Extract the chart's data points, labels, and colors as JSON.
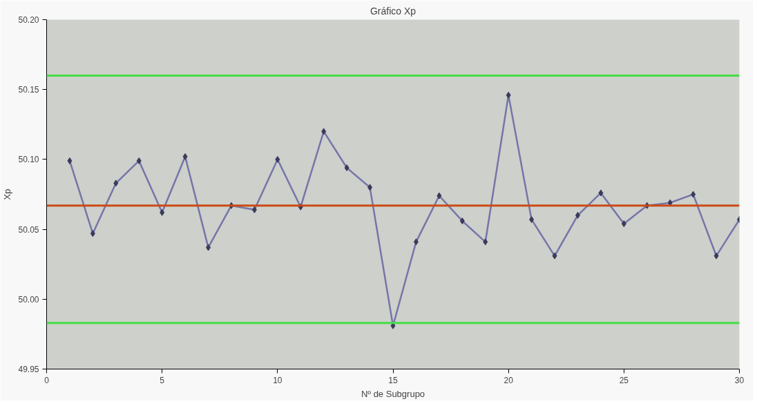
{
  "chart_data": {
    "type": "line",
    "title": "Gráfico Xp",
    "xlabel": "Nº de Subgrupo",
    "ylabel": "Xp",
    "x": [
      1,
      2,
      3,
      4,
      5,
      6,
      7,
      8,
      9,
      10,
      11,
      12,
      13,
      14,
      15,
      16,
      17,
      18,
      19,
      20,
      21,
      22,
      23,
      24,
      25,
      26,
      27,
      28,
      29,
      30
    ],
    "series": [
      {
        "color": "#7575a8",
        "values": [
          50.099,
          50.047,
          50.083,
          50.099,
          50.062,
          50.102,
          50.037,
          50.067,
          50.064,
          50.1,
          50.066,
          50.12,
          50.094,
          50.08,
          49.981,
          50.041,
          50.074,
          50.056,
          50.041,
          50.146,
          50.057,
          50.031,
          50.06,
          50.076,
          50.054,
          50.067,
          50.069,
          50.075,
          50.031,
          50.057
        ]
      }
    ],
    "xlim": [
      0,
      30
    ],
    "xticks": [
      0,
      5,
      10,
      15,
      20,
      25,
      30
    ],
    "ylim": [
      49.95,
      50.2
    ],
    "yticks": [
      {
        "value": 49.95,
        "label": "49.95"
      },
      {
        "value": 50.0,
        "label": "50.00"
      },
      {
        "value": 50.05,
        "label": "50.05"
      },
      {
        "value": 50.1,
        "label": "50.10"
      },
      {
        "value": 50.15,
        "label": "50.15"
      },
      {
        "value": 50.2,
        "label": "50.20"
      }
    ],
    "ref_lines": [
      {
        "axis": "y",
        "value": 50.16,
        "color": "#44dd44"
      },
      {
        "axis": "y",
        "value": 50.067,
        "color": "#cc4a14"
      },
      {
        "axis": "y",
        "value": 49.983,
        "color": "#44dd44"
      }
    ],
    "grid": false,
    "marker": "diamond",
    "line_style": "solid"
  }
}
